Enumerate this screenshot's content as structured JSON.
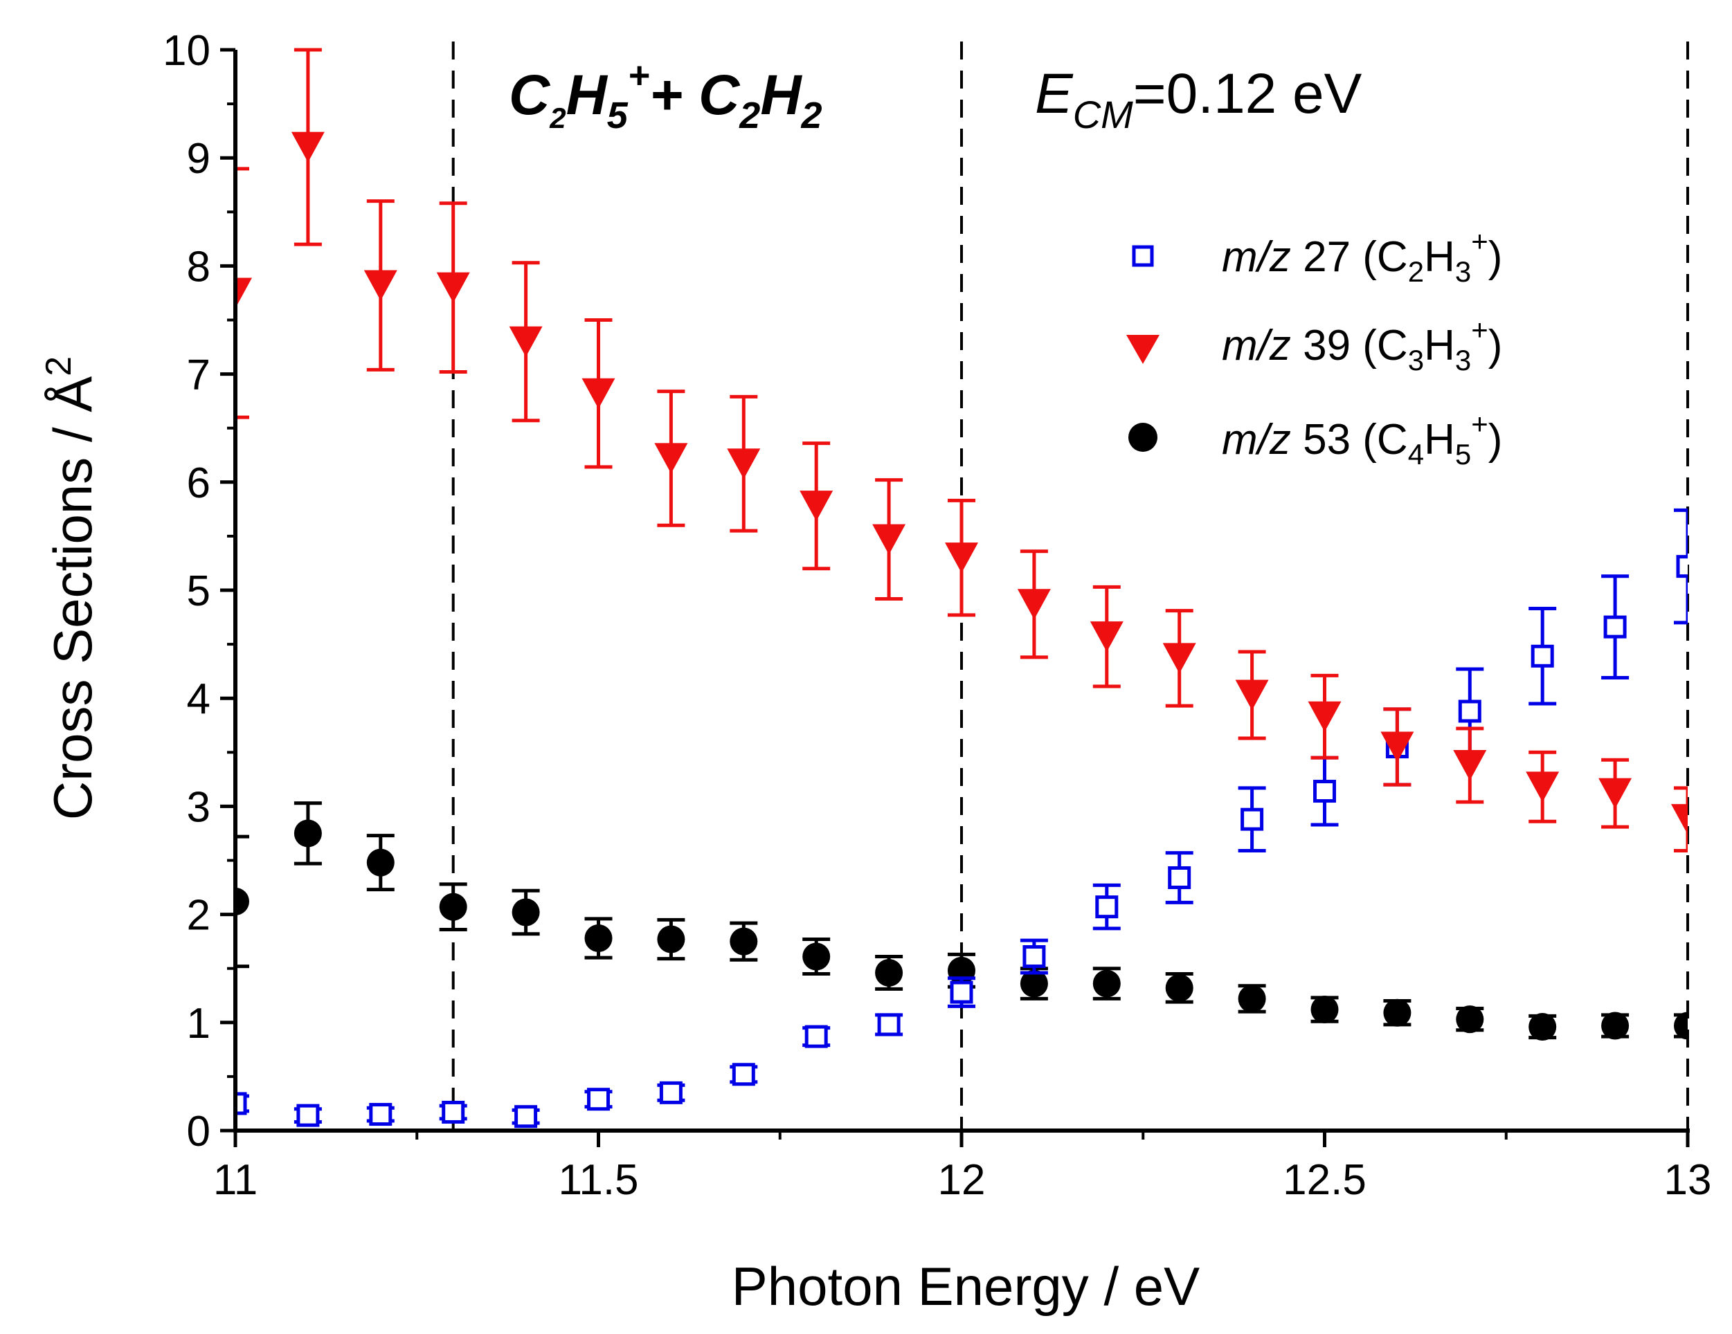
{
  "chart_data": {
    "type": "scatter",
    "title": "",
    "xlabel": "Photon Energy / eV",
    "ylabel": {
      "text": "Cross Sections / Å",
      "superscript": "2"
    },
    "xlim": [
      11,
      13
    ],
    "ylim": [
      0,
      10
    ],
    "x_ticks": [
      "11",
      "11.5",
      "12",
      "12.5",
      "13"
    ],
    "y_ticks": [
      "0",
      "1",
      "2",
      "3",
      "4",
      "5",
      "6",
      "7",
      "8",
      "9",
      "10"
    ],
    "vlines": [
      11.3,
      12.0,
      13.0
    ],
    "annotations": {
      "reaction": {
        "s1": "C",
        "n1": "2",
        "s2": "H",
        "n2": "5",
        "charge": "+",
        "plus": "+ ",
        "s3": "C",
        "n3": "2",
        "s4": "H",
        "n4": "2"
      },
      "energy": {
        "sym": "E",
        "sub": "CM",
        "value": "=0.12 eV"
      }
    },
    "legend": {
      "position": "top-right",
      "entries": [
        {
          "mz": "m/z",
          "num": " 27 (C",
          "n1": "2",
          "h": "H",
          "n2": "3",
          "charge": "+",
          "close": ")"
        },
        {
          "mz": "m/z",
          "num": " 39 (C",
          "n1": "3",
          "h": "H",
          "n2": "3",
          "charge": "+",
          "close": ")"
        },
        {
          "mz": "m/z",
          "num": " 53 (C",
          "n1": "4",
          "h": "H",
          "n2": "5",
          "charge": "+",
          "close": ")"
        }
      ]
    },
    "x": [
      11.0,
      11.1,
      11.2,
      11.3,
      11.4,
      11.5,
      11.6,
      11.7,
      11.8,
      11.9,
      12.0,
      12.1,
      12.2,
      12.3,
      12.4,
      12.5,
      12.6,
      12.7,
      12.8,
      12.9,
      13.0
    ],
    "series": [
      {
        "name": "m/z 27 (C2H3+)",
        "marker": "open-square",
        "color": "#0000e6",
        "values": [
          0.25,
          0.14,
          0.15,
          0.17,
          0.13,
          0.29,
          0.35,
          0.52,
          0.87,
          0.98,
          1.28,
          1.61,
          2.07,
          2.34,
          2.88,
          3.14,
          3.55,
          3.88,
          4.39,
          4.66,
          5.22
        ],
        "errors": [
          0.07,
          0.06,
          0.06,
          0.06,
          0.06,
          0.07,
          0.07,
          0.07,
          0.08,
          0.09,
          0.13,
          0.15,
          0.2,
          0.23,
          0.29,
          0.31,
          0.35,
          0.39,
          0.44,
          0.47,
          0.52
        ]
      },
      {
        "name": "m/z 39 (C3H3+)",
        "marker": "down-triangle",
        "color": "#ee1010",
        "values": [
          7.75,
          9.1,
          7.82,
          7.8,
          7.3,
          6.82,
          6.22,
          6.17,
          5.78,
          5.47,
          5.3,
          4.87,
          4.57,
          4.37,
          4.03,
          3.83,
          3.55,
          3.38,
          3.18,
          3.12,
          2.88
        ],
        "errors": [
          1.15,
          0.9,
          0.78,
          0.78,
          0.73,
          0.68,
          0.62,
          0.62,
          0.58,
          0.55,
          0.53,
          0.49,
          0.46,
          0.44,
          0.4,
          0.38,
          0.35,
          0.34,
          0.32,
          0.31,
          0.29
        ]
      },
      {
        "name": "m/z 53 (C4H5+)",
        "marker": "filled-circle",
        "color": "#000000",
        "values": [
          2.12,
          2.75,
          2.48,
          2.07,
          2.02,
          1.78,
          1.77,
          1.75,
          1.61,
          1.46,
          1.48,
          1.36,
          1.36,
          1.32,
          1.22,
          1.12,
          1.09,
          1.03,
          0.96,
          0.97,
          0.97
        ],
        "errors": [
          0.6,
          0.28,
          0.25,
          0.21,
          0.2,
          0.18,
          0.18,
          0.17,
          0.16,
          0.15,
          0.15,
          0.14,
          0.14,
          0.13,
          0.12,
          0.11,
          0.11,
          0.1,
          0.1,
          0.1,
          0.1
        ]
      }
    ]
  }
}
